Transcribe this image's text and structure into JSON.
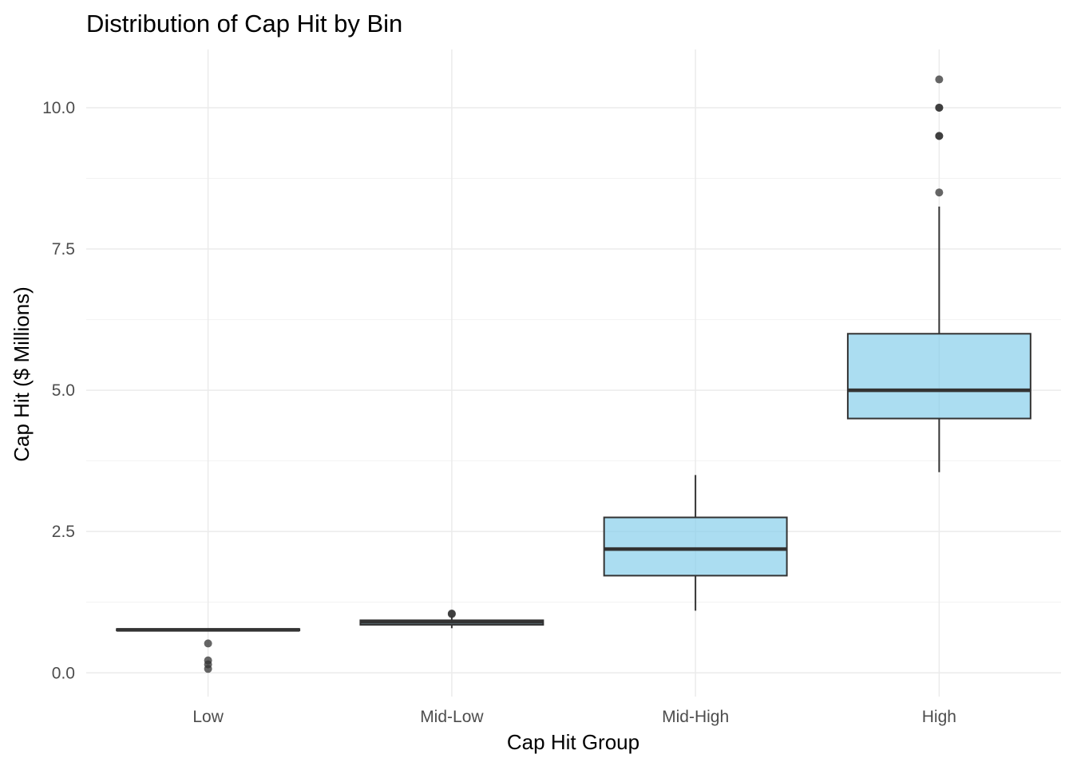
{
  "chart_data": {
    "type": "boxplot",
    "title": "Distribution of Cap Hit by Bin",
    "xlabel": "Cap Hit Group",
    "ylabel": "Cap Hit ($ Millions)",
    "categories": [
      "Low",
      "Mid-Low",
      "Mid-High",
      "High"
    ],
    "yticks": [
      0.0,
      2.5,
      5.0,
      7.5,
      10.0
    ],
    "ytick_labels": [
      "0.0",
      "2.5",
      "5.0",
      "7.5",
      "10.0"
    ],
    "ylim": [
      -0.42,
      11.03
    ],
    "grid": true,
    "legend": "none",
    "fill_color": "#87ceeb",
    "box_stroke_color": "#333333",
    "outlier_color": "#333333",
    "boxes": [
      {
        "category": "Low",
        "whisker_low": 0.75,
        "q1": 0.75,
        "median": 0.76,
        "q3": 0.775,
        "whisker_high": 0.775,
        "outliers": [
          0.07,
          0.15,
          0.22,
          0.52
        ]
      },
      {
        "category": "Mid-Low",
        "whisker_low": 0.79,
        "q1": 0.85,
        "median": 0.9,
        "q3": 0.93,
        "whisker_high": 1.0,
        "outliers": [
          1.04,
          1.05
        ]
      },
      {
        "category": "Mid-High",
        "whisker_low": 1.1,
        "q1": 1.72,
        "median": 2.19,
        "q3": 2.75,
        "whisker_high": 3.5,
        "outliers": []
      },
      {
        "category": "High",
        "whisker_low": 3.55,
        "q1": 4.5,
        "median": 5.0,
        "q3": 6.0,
        "whisker_high": 8.25,
        "outliers": [
          8.5,
          9.5,
          9.5,
          10.0,
          10.0,
          10.5
        ]
      }
    ]
  }
}
